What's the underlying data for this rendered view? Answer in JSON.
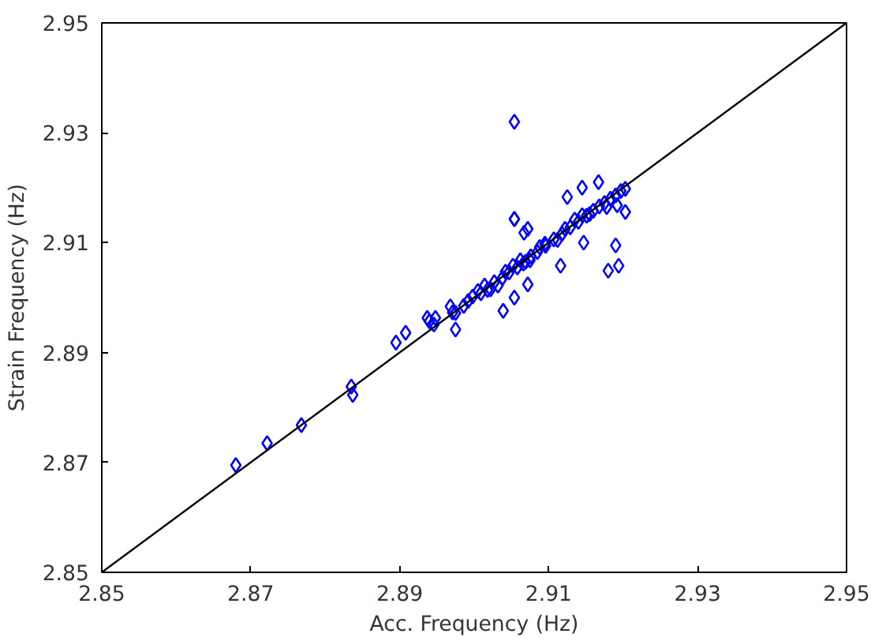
{
  "chart_data": {
    "type": "scatter",
    "xlabel": "Acc. Frequency (Hz)",
    "ylabel": "Strain Frequency (Hz)",
    "xlim": [
      2.85,
      2.95
    ],
    "ylim": [
      2.85,
      2.95
    ],
    "xticks": [
      2.85,
      2.87,
      2.89,
      2.91,
      2.93,
      2.95
    ],
    "yticks": [
      2.85,
      2.87,
      2.89,
      2.91,
      2.93,
      2.95
    ],
    "grid": false,
    "series": [
      {
        "color": "#0000ff",
        "marker": "diamond",
        "x": [
          2.868,
          2.8722,
          2.8768,
          2.8835,
          2.8837,
          2.8895,
          2.8908,
          2.8937,
          2.894,
          2.8948,
          2.8946,
          2.8968,
          2.8971,
          2.8986,
          2.8975,
          2.8992,
          2.8998,
          2.9009,
          2.9018,
          2.9014,
          2.9027,
          2.9038,
          2.9047,
          2.9058,
          2.9069,
          2.9076,
          2.9085,
          2.9096,
          2.9107,
          2.9118,
          2.9129,
          2.914,
          2.9151,
          2.916,
          2.9168,
          2.9175,
          2.9183,
          2.919,
          2.9197,
          2.9203,
          2.9032,
          2.9042,
          2.9062,
          2.9075,
          2.9088,
          2.9112,
          2.9135,
          2.9155,
          2.9178,
          2.9005,
          2.9022,
          2.9052,
          2.9066,
          2.9095,
          2.9122,
          2.9145,
          2.9054,
          2.9054,
          2.9125,
          2.9145,
          2.9167,
          2.9054,
          2.9072,
          2.9067,
          2.9147,
          2.919,
          2.9116,
          2.918,
          2.9194,
          2.9203,
          2.9192,
          2.9072,
          2.9054,
          2.9039,
          2.8975
        ],
        "values": [
          2.8695,
          2.8735,
          2.8768,
          2.8838,
          2.8823,
          2.8918,
          2.8936,
          2.8963,
          2.8957,
          2.8963,
          2.8951,
          2.8984,
          2.8973,
          2.8985,
          2.8972,
          2.8994,
          2.9002,
          2.9008,
          2.9014,
          2.9022,
          2.9028,
          2.9036,
          2.9046,
          2.9055,
          2.9065,
          2.9075,
          2.9083,
          2.9094,
          2.9106,
          2.9116,
          2.9128,
          2.9138,
          2.9149,
          2.9158,
          2.9166,
          2.9172,
          2.918,
          2.9186,
          2.9194,
          2.9198,
          2.9022,
          2.9047,
          2.9068,
          2.9068,
          2.9092,
          2.9105,
          2.9142,
          2.9152,
          2.9165,
          2.9012,
          2.9015,
          2.9058,
          2.9062,
          2.9098,
          2.9125,
          2.915,
          2.932,
          2.9143,
          2.9183,
          2.92,
          2.921,
          2.9143,
          2.9125,
          2.9118,
          2.91,
          2.9095,
          2.9058,
          2.9049,
          2.9058,
          2.9156,
          2.9168,
          2.9024,
          2.9,
          2.8976,
          2.8942
        ]
      },
      {
        "type": "line",
        "color": "#000000",
        "x": [
          2.85,
          2.95
        ],
        "values": [
          2.85,
          2.95
        ],
        "line_style": "solid"
      }
    ]
  }
}
